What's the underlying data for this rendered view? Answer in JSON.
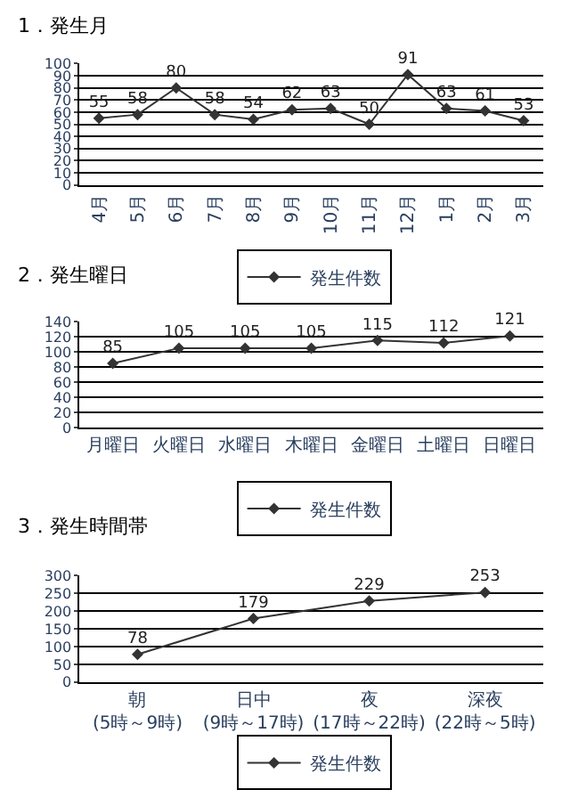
{
  "chart_data": [
    {
      "type": "line",
      "title": "1．発生月",
      "categories": [
        "4月",
        "5月",
        "6月",
        "7月",
        "8月",
        "9月",
        "10月",
        "11月",
        "12月",
        "1月",
        "2月",
        "3月"
      ],
      "series": [
        {
          "name": "発生件数",
          "color": "#333333",
          "values": [
            55,
            58,
            80,
            58,
            54,
            62,
            63,
            50,
            91,
            63,
            61,
            53
          ]
        }
      ],
      "ylim": [
        0,
        100
      ],
      "yticks": [
        0,
        10,
        20,
        30,
        40,
        50,
        60,
        70,
        80,
        90,
        100
      ],
      "grid": "y",
      "legend": "bottom",
      "marker": "diamond",
      "line_style": "solid",
      "data_labels": true
    },
    {
      "type": "line",
      "title": "2．発生曜日",
      "categories": [
        "月曜日",
        "火曜日",
        "水曜日",
        "木曜日",
        "金曜日",
        "土曜日",
        "日曜日"
      ],
      "series": [
        {
          "name": "発生件数",
          "color": "#333333",
          "values": [
            85,
            105,
            105,
            105,
            115,
            112,
            121
          ]
        }
      ],
      "ylim": [
        0,
        140
      ],
      "yticks": [
        0,
        20,
        40,
        60,
        80,
        100,
        120,
        140
      ],
      "grid": "y",
      "legend": "bottom",
      "marker": "diamond",
      "line_style": "solid",
      "data_labels": true
    },
    {
      "type": "line",
      "title": "3．発生時間帯",
      "categories": [
        "朝(5時～9時)",
        "日中(9時～17時)",
        "夜(17時～22時)",
        "深夜(22時～5時)"
      ],
      "series": [
        {
          "name": "発生件数",
          "color": "#333333",
          "values": [
            78,
            179,
            229,
            253
          ]
        }
      ],
      "ylim": [
        0,
        300
      ],
      "yticks": [
        0,
        50,
        100,
        150,
        200,
        250,
        300
      ],
      "grid": "y",
      "legend": "bottom",
      "marker": "diamond",
      "line_style": "solid",
      "data_labels": true
    }
  ]
}
